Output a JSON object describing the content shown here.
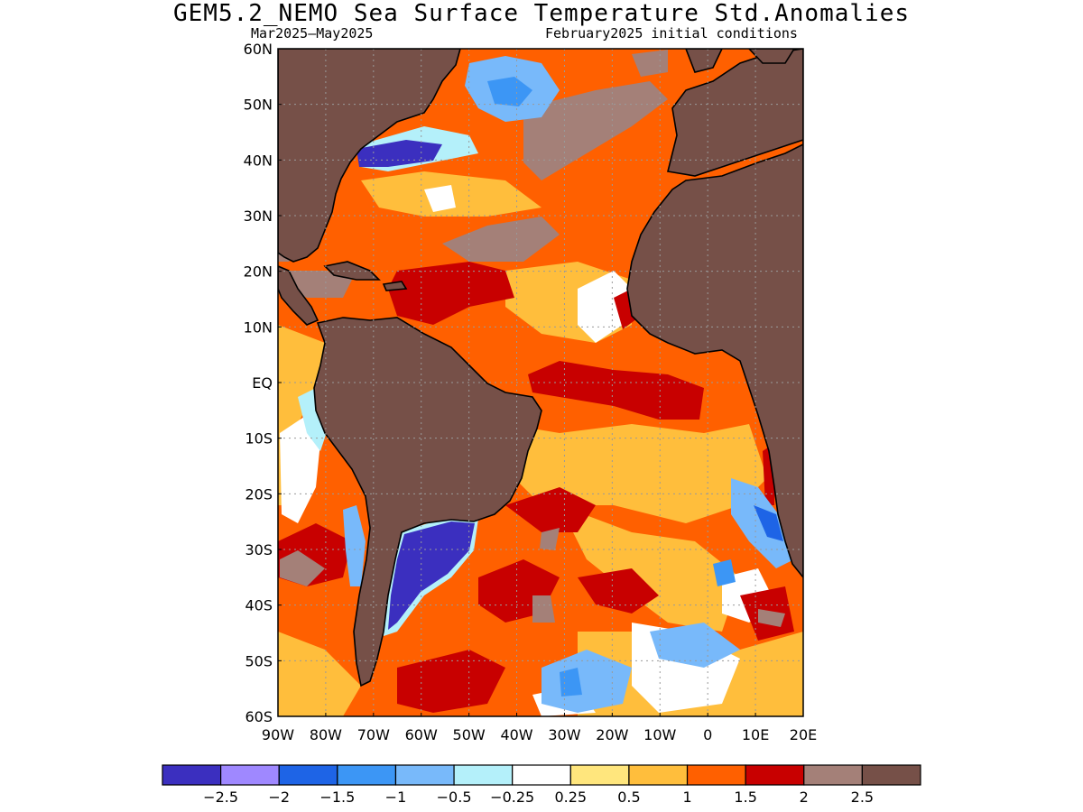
{
  "title": "GEM5.2_NEMO Sea Surface Temperature Std.Anomalies",
  "subtitle_left": "Mar2025—May2025",
  "subtitle_right": "February2025 initial conditions",
  "lat_labels": [
    "60N",
    "50N",
    "40N",
    "30N",
    "20N",
    "10N",
    "EQ",
    "10S",
    "20S",
    "30S",
    "40S",
    "50S",
    "60S"
  ],
  "lon_labels": [
    "90W",
    "80W",
    "70W",
    "60W",
    "50W",
    "40W",
    "30W",
    "20W",
    "10W",
    "0",
    "10E",
    "20E"
  ],
  "colorbar": {
    "colors": [
      "#3b2fbf",
      "#9f88ff",
      "#1e64e6",
      "#3c96f5",
      "#78b9fa",
      "#b4f0fa",
      "#ffffff",
      "#ffe67d",
      "#ffbe3c",
      "#ff6000",
      "#c80000",
      "#a48078",
      "#765048"
    ],
    "labels": [
      "−2.5",
      "−2",
      "−1.5",
      "−1",
      "−0.5",
      "−0.25",
      "0.25",
      "0.5",
      "1",
      "1.5",
      "2",
      "2.5"
    ]
  },
  "colors": {
    "land": "#765048",
    "coast": "#000000"
  }
}
